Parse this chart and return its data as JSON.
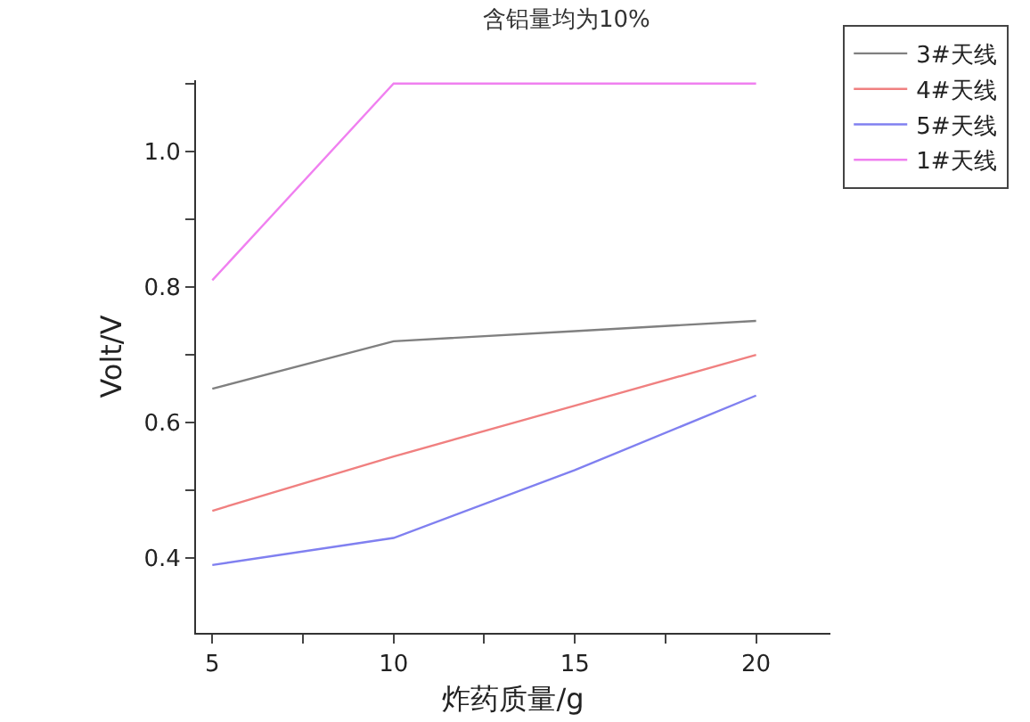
{
  "chart_data": {
    "type": "line",
    "title": "含铝量均为10%",
    "xlabel": "炸药质量/g",
    "ylabel": "Volt/V",
    "x": [
      5,
      10,
      15,
      20
    ],
    "series": [
      {
        "name": "3#天线",
        "color": "#808080",
        "values": [
          0.65,
          0.72,
          0.735,
          0.75
        ]
      },
      {
        "name": "4#天线",
        "color": "#f08080",
        "values": [
          0.47,
          0.55,
          0.625,
          0.7
        ]
      },
      {
        "name": "5#天线",
        "color": "#8080f0",
        "values": [
          0.39,
          0.43,
          0.53,
          0.64
        ]
      },
      {
        "name": "1#天线",
        "color": "#f080f0",
        "values": [
          0.81,
          1.1,
          1.1,
          1.1
        ]
      }
    ],
    "xlim": [
      4.55,
      22.05
    ],
    "ylim": [
      0.29,
      1.105
    ],
    "xticks": [
      5,
      {
        "value": 7.5,
        "label": null
      },
      10,
      {
        "value": 12.5,
        "label": null
      },
      15,
      {
        "value": 17.5,
        "label": null
      },
      20
    ],
    "yticks": [
      {
        "value": 0.4,
        "label": "0.4"
      },
      {
        "value": 0.5,
        "label": null
      },
      {
        "value": 0.6,
        "label": "0.6"
      },
      {
        "value": 0.7,
        "label": null
      },
      {
        "value": 0.8,
        "label": "0.8"
      },
      {
        "value": 0.9,
        "label": null
      },
      {
        "value": 1.0,
        "label": "1.0"
      },
      {
        "value": 1.1,
        "label": null
      }
    ],
    "grid": false,
    "legend": "top right",
    "marker": "none",
    "line_style": "solid"
  }
}
